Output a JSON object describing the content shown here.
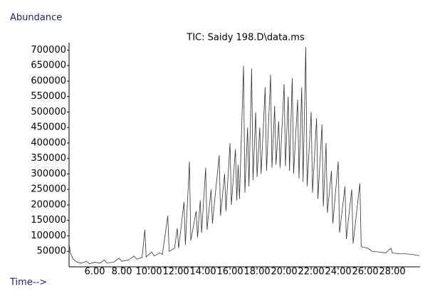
{
  "chart_data": {
    "type": "line",
    "title": "TIC: Saidy 198.D\\data.ms",
    "y_label": "Abundance",
    "x_label": "Time-->",
    "color": "#333333",
    "xlim": [
      4.1,
      30.05
    ],
    "ylim": [
      0,
      724000
    ],
    "xticks": [
      {
        "value": 6,
        "label": "6.00"
      },
      {
        "value": 8,
        "label": "8.00"
      },
      {
        "value": 10,
        "label": "10.00"
      },
      {
        "value": 12,
        "label": "12.00"
      },
      {
        "value": 14,
        "label": "14.00"
      },
      {
        "value": 16,
        "label": "16.00"
      },
      {
        "value": 18,
        "label": "18.00"
      },
      {
        "value": 20,
        "label": "20.00"
      },
      {
        "value": 22,
        "label": "22.00"
      },
      {
        "value": 24,
        "label": "24.00"
      },
      {
        "value": 26,
        "label": "26.00"
      },
      {
        "value": 28,
        "label": "28.00"
      }
    ],
    "yticks": [
      50000,
      100000,
      150000,
      200000,
      250000,
      300000,
      350000,
      400000,
      450000,
      500000,
      550000,
      600000,
      650000,
      700000
    ],
    "x": [
      4.1,
      4.2,
      4.4,
      4.7,
      5.0,
      5.4,
      5.6,
      6.0,
      6.4,
      6.7,
      6.9,
      7.4,
      7.8,
      8.0,
      8.5,
      8.9,
      9.1,
      9.5,
      9.7,
      9.8,
      10.2,
      10.4,
      10.8,
      11.0,
      11.4,
      11.5,
      11.9,
      12.1,
      12.2,
      12.6,
      12.7,
      13.0,
      13.1,
      13.5,
      13.6,
      13.8,
      13.9,
      14.2,
      14.3,
      14.6,
      14.7,
      15.2,
      15.3,
      15.6,
      15.7,
      16.0,
      16.1,
      16.4,
      16.5,
      16.6,
      16.7,
      17.0,
      17.1,
      17.3,
      17.4,
      17.6,
      17.7,
      17.9,
      18.0,
      18.2,
      18.3,
      18.6,
      18.7,
      19.0,
      19.1,
      19.3,
      19.4,
      19.6,
      19.7,
      20.0,
      20.1,
      20.3,
      20.4,
      20.6,
      20.7,
      21.0,
      21.1,
      21.3,
      21.4,
      21.6,
      21.7,
      22.0,
      22.1,
      22.4,
      22.5,
      22.8,
      22.9,
      23.1,
      23.2,
      23.5,
      23.6,
      24.0,
      24.1,
      24.5,
      24.6,
      25.0,
      25.1,
      25.6,
      25.7,
      26.2,
      26.5,
      27.0,
      27.5,
      27.9,
      28.0,
      28.5,
      29.0,
      29.5,
      30.0
    ],
    "values": [
      75000,
      45000,
      25000,
      15000,
      12000,
      18000,
      10000,
      15000,
      12000,
      22000,
      13000,
      15000,
      28000,
      18000,
      22000,
      35000,
      25000,
      30000,
      120000,
      32000,
      48000,
      35000,
      45000,
      40000,
      165000,
      50000,
      60000,
      125000,
      60000,
      210000,
      70000,
      340000,
      85000,
      180000,
      95000,
      215000,
      110000,
      320000,
      120000,
      250000,
      140000,
      360000,
      165000,
      300000,
      180000,
      400000,
      200000,
      380000,
      215000,
      330000,
      220000,
      650000,
      240000,
      450000,
      260000,
      640000,
      280000,
      500000,
      290000,
      450000,
      300000,
      580000,
      310000,
      620000,
      320000,
      520000,
      330000,
      470000,
      320000,
      590000,
      325000,
      550000,
      310000,
      610000,
      300000,
      540000,
      285000,
      580000,
      275000,
      710000,
      260000,
      500000,
      240000,
      480000,
      220000,
      460000,
      195000,
      400000,
      175000,
      310000,
      140000,
      340000,
      110000,
      260000,
      90000,
      250000,
      75000,
      270000,
      65000,
      60000,
      50000,
      48000,
      45000,
      60000,
      45000,
      42000,
      42000,
      40000,
      36000
    ]
  }
}
